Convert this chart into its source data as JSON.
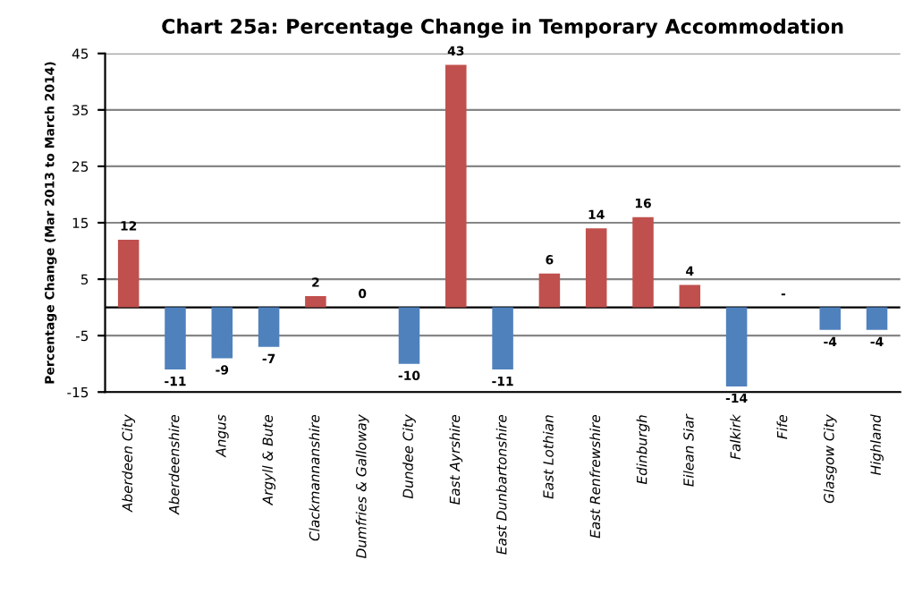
{
  "chart_data": {
    "type": "bar",
    "title": "Chart 25a: Percentage Change in Temporary Accommodation",
    "ylabel": "Percentage Change (Mar 2013 to March 2014)",
    "categories": [
      "Aberdeen City",
      "Aberdeenshire",
      "Angus",
      "Argyll & Bute",
      "Clackmannanshire",
      "Dumfries & Galloway",
      "Dundee City",
      "East Ayrshire",
      "East Dunbartonshire",
      "East Lothian",
      "East Renfrewshire",
      "Edinburgh",
      "Eilean Siar",
      "Falkirk",
      "Fife",
      "Glasgow City",
      "Highland"
    ],
    "values": [
      12,
      -11,
      -9,
      -7,
      2,
      0,
      -10,
      43,
      -11,
      6,
      14,
      16,
      4,
      -14,
      null,
      -4,
      -4
    ],
    "value_labels": [
      "12",
      "-11",
      "-9",
      "-7",
      "2",
      "0",
      "-10",
      "43",
      "-11",
      "6",
      "14",
      "16",
      "4",
      "-14",
      "-",
      "-4",
      "-4"
    ],
    "colors": [
      "#c0504d",
      "#4f81bd",
      "#4f81bd",
      "#4f81bd",
      "#c0504d",
      "#c0504d",
      "#4f81bd",
      "#c0504d",
      "#4f81bd",
      "#c0504d",
      "#c0504d",
      "#c0504d",
      "#c0504d",
      "#4f81bd",
      "#c0504d",
      "#4f81bd",
      "#4f81bd"
    ],
    "ylim": [
      -15,
      45
    ],
    "yticks": [
      -15,
      -5,
      5,
      15,
      25,
      35,
      45
    ],
    "grid": "y",
    "ref_lines": [
      {
        "axis": "y",
        "value": 0,
        "color": "#000000"
      }
    ]
  }
}
